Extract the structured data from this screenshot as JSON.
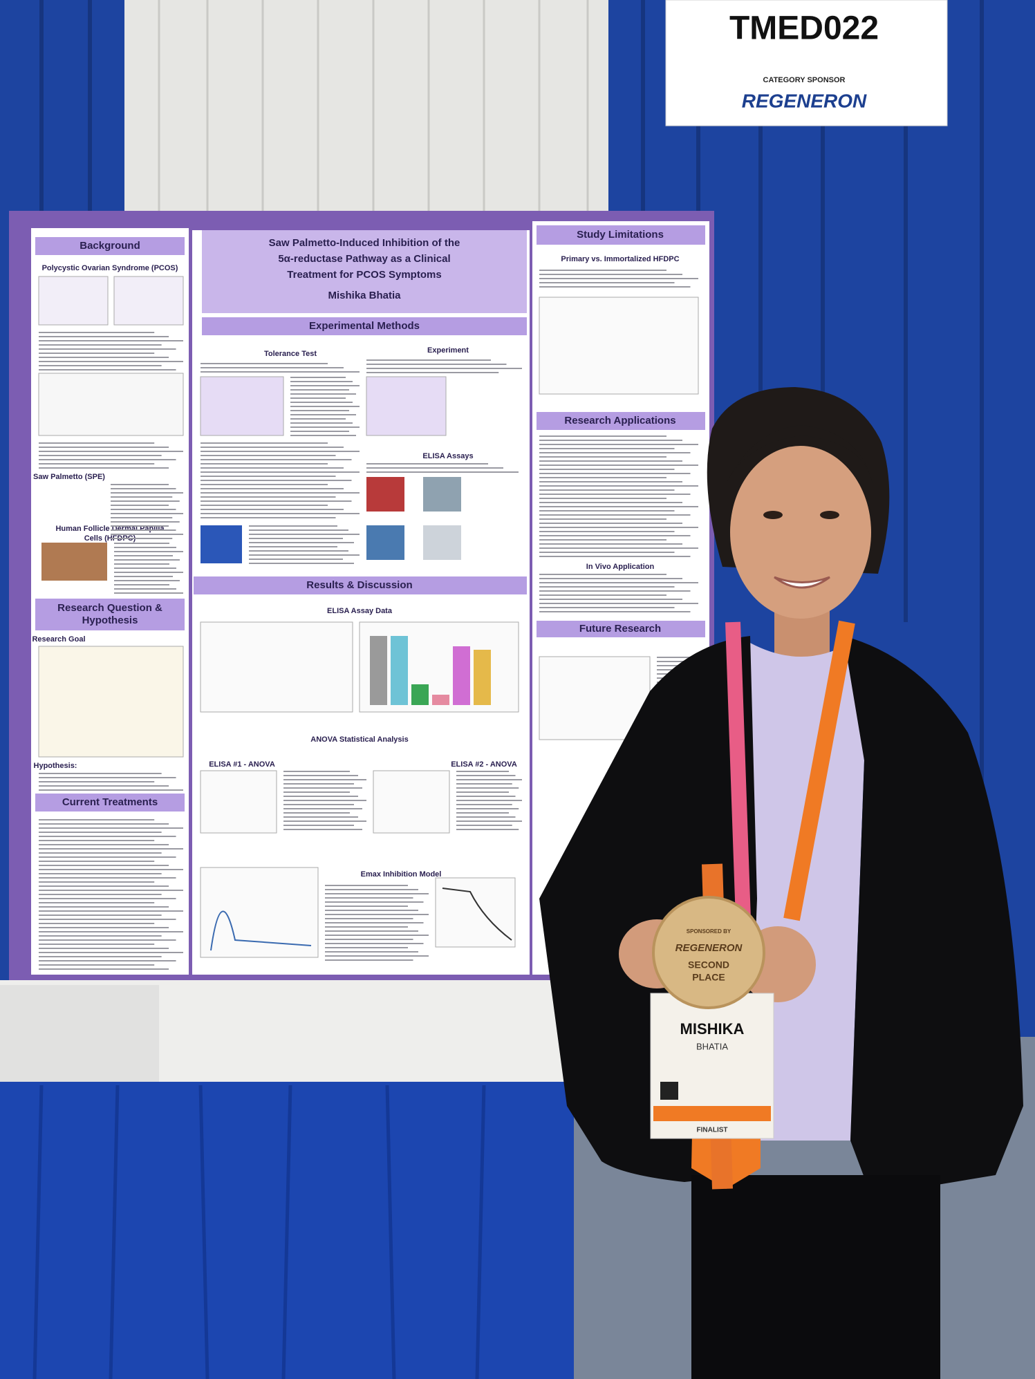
{
  "sign": {
    "code": "TMED022",
    "label": "CATEGORY SPONSOR",
    "sponsor": "REGENERON"
  },
  "poster": {
    "title": [
      "Saw Palmetto-Induced Inhibition of the",
      "5α-reductase Pathway as a Clinical",
      "Treatment for PCOS Symptoms"
    ],
    "author": "Mishika Bhatia",
    "left": {
      "background": "Background",
      "pcos": "Polycystic Ovarian Syndrome (PCOS)",
      "spe": "Saw Palmetto (SPE)",
      "hfdpc": [
        "Human Follicle Dermal Papilla",
        "Cells (HFDPC)"
      ],
      "question": [
        "Research Question &",
        "Hypothesis"
      ],
      "goal": "Research Goal",
      "hypothesis": "Hypothesis:",
      "treatments": "Current Treatments"
    },
    "center": {
      "methods": "Experimental Methods",
      "tolerance": "Tolerance Test",
      "experiment": "Experiment",
      "elisa_assays": "ELISA Assays",
      "results": "Results & Discussion",
      "elisa_data": "ELISA Assay Data",
      "anova": "ANOVA Statistical Analysis",
      "elisa1": "ELISA #1 - ANOVA",
      "elisa2": "ELISA #2 - ANOVA",
      "emax": "Emax Inhibition Model"
    },
    "right": {
      "limitations": "Study Limitations",
      "primary": "Primary vs. Immortalized HFDPC",
      "applications": "Research Applications",
      "invivo": "In Vivo Application",
      "future": "Future Research"
    }
  },
  "medal": {
    "sponsored_by": "SPONSORED BY",
    "sponsor": "REGENERON",
    "place": [
      "SECOND",
      "PLACE"
    ]
  },
  "badge": {
    "first_name": "MISHIKA",
    "last_name": "BHATIA",
    "status": "FINALIST"
  }
}
